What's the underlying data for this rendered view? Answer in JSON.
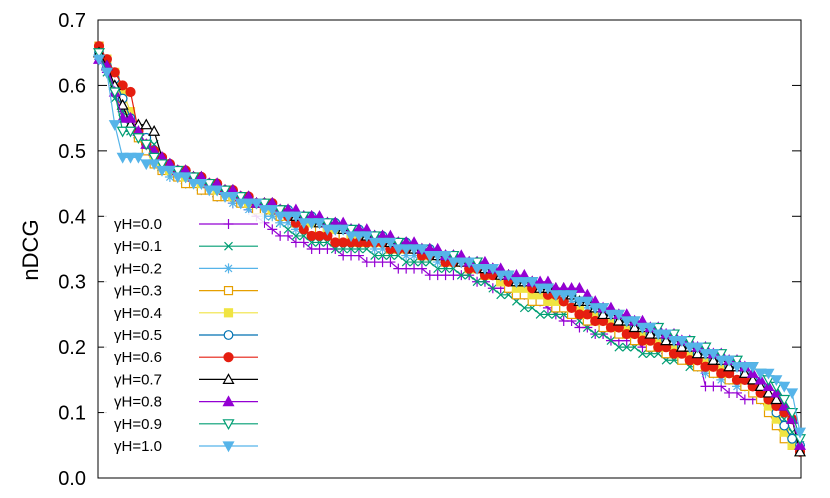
{
  "chart_data": {
    "type": "line",
    "ylabel": "nDCG",
    "xlabel": "",
    "ylim": [
      0.0,
      0.7
    ],
    "yticks": [
      "0.0",
      "0.1",
      "0.2",
      "0.3",
      "0.4",
      "0.5",
      "0.6",
      "0.7"
    ],
    "grid": false,
    "legend_position": "bottom-left",
    "x_range": [
      1,
      90
    ],
    "series": [
      {
        "name": "γH=0.0",
        "color": "#9400d3",
        "marker": "plus",
        "values": [
          0.64,
          0.62,
          0.6,
          0.56,
          0.53,
          0.52,
          0.51,
          0.5,
          0.49,
          0.48,
          0.47,
          0.47,
          0.46,
          0.45,
          0.44,
          0.43,
          0.43,
          0.42,
          0.42,
          0.41,
          0.4,
          0.39,
          0.38,
          0.37,
          0.37,
          0.36,
          0.36,
          0.35,
          0.35,
          0.35,
          0.35,
          0.34,
          0.34,
          0.34,
          0.33,
          0.33,
          0.33,
          0.33,
          0.32,
          0.32,
          0.32,
          0.32,
          0.31,
          0.31,
          0.31,
          0.31,
          0.31,
          0.31,
          0.3,
          0.3,
          0.29,
          0.29,
          0.29,
          0.28,
          0.28,
          0.28,
          0.27,
          0.26,
          0.25,
          0.24,
          0.24,
          0.23,
          0.23,
          0.22,
          0.22,
          0.21,
          0.21,
          0.21,
          0.21,
          0.2,
          0.2,
          0.2,
          0.19,
          0.19,
          0.19,
          0.19,
          0.19,
          0.14,
          0.14,
          0.14,
          0.13,
          0.13,
          0.12,
          0.12,
          0.12,
          0.12,
          0.1,
          0.08,
          0.06,
          0.04
        ]
      },
      {
        "name": "γH=0.1",
        "color": "#009e73",
        "marker": "cross",
        "values": [
          0.65,
          0.62,
          0.58,
          0.56,
          0.53,
          0.53,
          0.52,
          0.51,
          0.48,
          0.47,
          0.47,
          0.46,
          0.45,
          0.45,
          0.44,
          0.44,
          0.43,
          0.43,
          0.42,
          0.42,
          0.41,
          0.41,
          0.4,
          0.39,
          0.38,
          0.37,
          0.37,
          0.36,
          0.36,
          0.36,
          0.35,
          0.35,
          0.35,
          0.35,
          0.35,
          0.34,
          0.34,
          0.34,
          0.34,
          0.33,
          0.33,
          0.33,
          0.33,
          0.32,
          0.32,
          0.32,
          0.31,
          0.31,
          0.3,
          0.3,
          0.29,
          0.28,
          0.28,
          0.27,
          0.26,
          0.26,
          0.25,
          0.25,
          0.25,
          0.25,
          0.25,
          0.24,
          0.23,
          0.22,
          0.22,
          0.21,
          0.2,
          0.2,
          0.2,
          0.19,
          0.19,
          0.19,
          0.18,
          0.18,
          0.18,
          0.17,
          0.17,
          0.17,
          0.16,
          0.16,
          0.16,
          0.15,
          0.15,
          0.15,
          0.14,
          0.12,
          0.1,
          0.09,
          0.07,
          0.05
        ]
      },
      {
        "name": "γH=0.2",
        "color": "#56b4e9",
        "marker": "star",
        "values": [
          0.64,
          0.63,
          0.61,
          0.58,
          0.55,
          0.52,
          0.51,
          0.49,
          0.47,
          0.46,
          0.46,
          0.45,
          0.45,
          0.44,
          0.44,
          0.43,
          0.43,
          0.42,
          0.42,
          0.41,
          0.41,
          0.4,
          0.4,
          0.39,
          0.39,
          0.38,
          0.38,
          0.37,
          0.37,
          0.37,
          0.37,
          0.36,
          0.36,
          0.36,
          0.36,
          0.35,
          0.35,
          0.35,
          0.35,
          0.34,
          0.34,
          0.34,
          0.34,
          0.33,
          0.33,
          0.33,
          0.33,
          0.32,
          0.32,
          0.32,
          0.31,
          0.31,
          0.3,
          0.3,
          0.29,
          0.29,
          0.28,
          0.28,
          0.28,
          0.27,
          0.27,
          0.26,
          0.26,
          0.25,
          0.25,
          0.24,
          0.23,
          0.23,
          0.22,
          0.22,
          0.21,
          0.21,
          0.2,
          0.2,
          0.19,
          0.18,
          0.17,
          0.16,
          0.16,
          0.15,
          0.15,
          0.14,
          0.14,
          0.13,
          0.12,
          0.11,
          0.1,
          0.08,
          0.06,
          0.05
        ]
      },
      {
        "name": "γH=0.3",
        "color": "#e69f00",
        "marker": "square-open",
        "values": [
          0.66,
          0.64,
          0.61,
          0.58,
          0.55,
          0.52,
          0.5,
          0.48,
          0.47,
          0.47,
          0.46,
          0.45,
          0.45,
          0.44,
          0.44,
          0.43,
          0.43,
          0.43,
          0.42,
          0.42,
          0.41,
          0.41,
          0.41,
          0.4,
          0.4,
          0.39,
          0.39,
          0.38,
          0.38,
          0.38,
          0.37,
          0.37,
          0.37,
          0.36,
          0.36,
          0.36,
          0.36,
          0.35,
          0.35,
          0.35,
          0.35,
          0.34,
          0.34,
          0.34,
          0.33,
          0.33,
          0.33,
          0.32,
          0.32,
          0.31,
          0.31,
          0.3,
          0.29,
          0.28,
          0.28,
          0.27,
          0.27,
          0.27,
          0.26,
          0.26,
          0.25,
          0.25,
          0.24,
          0.24,
          0.23,
          0.23,
          0.22,
          0.22,
          0.21,
          0.21,
          0.2,
          0.2,
          0.19,
          0.19,
          0.18,
          0.18,
          0.17,
          0.17,
          0.16,
          0.16,
          0.15,
          0.15,
          0.14,
          0.13,
          0.12,
          0.1,
          0.08,
          0.06,
          0.05,
          0.04
        ]
      },
      {
        "name": "γH=0.4",
        "color": "#f0e442",
        "marker": "square-filled",
        "values": [
          0.65,
          0.64,
          0.62,
          0.59,
          0.56,
          0.53,
          0.51,
          0.49,
          0.48,
          0.47,
          0.47,
          0.46,
          0.46,
          0.45,
          0.45,
          0.44,
          0.44,
          0.43,
          0.43,
          0.42,
          0.42,
          0.42,
          0.41,
          0.41,
          0.4,
          0.4,
          0.39,
          0.39,
          0.39,
          0.38,
          0.38,
          0.38,
          0.37,
          0.37,
          0.37,
          0.36,
          0.36,
          0.36,
          0.36,
          0.35,
          0.35,
          0.35,
          0.34,
          0.34,
          0.34,
          0.33,
          0.33,
          0.32,
          0.32,
          0.32,
          0.31,
          0.3,
          0.3,
          0.29,
          0.29,
          0.28,
          0.28,
          0.27,
          0.27,
          0.27,
          0.26,
          0.26,
          0.25,
          0.25,
          0.24,
          0.24,
          0.23,
          0.23,
          0.22,
          0.22,
          0.21,
          0.21,
          0.2,
          0.2,
          0.19,
          0.19,
          0.18,
          0.18,
          0.17,
          0.17,
          0.16,
          0.16,
          0.15,
          0.14,
          0.13,
          0.11,
          0.09,
          0.07,
          0.05,
          0.04
        ]
      },
      {
        "name": "γH=0.5",
        "color": "#0072b2",
        "marker": "circle-open",
        "values": [
          0.65,
          0.63,
          0.61,
          0.58,
          0.55,
          0.53,
          0.52,
          0.5,
          0.49,
          0.48,
          0.47,
          0.47,
          0.46,
          0.46,
          0.45,
          0.45,
          0.44,
          0.44,
          0.43,
          0.43,
          0.42,
          0.42,
          0.42,
          0.41,
          0.41,
          0.4,
          0.4,
          0.4,
          0.39,
          0.39,
          0.39,
          0.38,
          0.38,
          0.38,
          0.37,
          0.37,
          0.37,
          0.36,
          0.36,
          0.36,
          0.35,
          0.35,
          0.35,
          0.34,
          0.34,
          0.34,
          0.33,
          0.33,
          0.33,
          0.32,
          0.32,
          0.31,
          0.31,
          0.3,
          0.3,
          0.3,
          0.29,
          0.29,
          0.28,
          0.28,
          0.28,
          0.27,
          0.27,
          0.26,
          0.25,
          0.25,
          0.24,
          0.24,
          0.23,
          0.23,
          0.22,
          0.22,
          0.21,
          0.21,
          0.2,
          0.2,
          0.19,
          0.19,
          0.18,
          0.18,
          0.17,
          0.16,
          0.16,
          0.15,
          0.14,
          0.12,
          0.1,
          0.08,
          0.06,
          0.05
        ]
      },
      {
        "name": "γH=0.6",
        "color": "#e51e10",
        "marker": "circle-filled",
        "values": [
          0.66,
          0.64,
          0.62,
          0.6,
          0.59,
          0.53,
          0.51,
          0.5,
          0.49,
          0.48,
          0.47,
          0.47,
          0.46,
          0.46,
          0.45,
          0.45,
          0.44,
          0.44,
          0.43,
          0.43,
          0.42,
          0.42,
          0.42,
          0.41,
          0.4,
          0.39,
          0.38,
          0.37,
          0.37,
          0.37,
          0.36,
          0.36,
          0.36,
          0.36,
          0.36,
          0.36,
          0.36,
          0.35,
          0.35,
          0.35,
          0.35,
          0.34,
          0.34,
          0.34,
          0.33,
          0.33,
          0.33,
          0.32,
          0.32,
          0.31,
          0.31,
          0.31,
          0.3,
          0.3,
          0.3,
          0.29,
          0.29,
          0.28,
          0.28,
          0.27,
          0.26,
          0.25,
          0.25,
          0.24,
          0.24,
          0.23,
          0.23,
          0.22,
          0.22,
          0.21,
          0.21,
          0.2,
          0.2,
          0.19,
          0.19,
          0.18,
          0.18,
          0.17,
          0.17,
          0.16,
          0.16,
          0.15,
          0.15,
          0.14,
          0.13,
          0.12,
          0.11,
          0.1,
          0.09,
          0.04
        ]
      },
      {
        "name": "γH=0.7",
        "color": "#000000",
        "marker": "triangle-open",
        "values": [
          0.65,
          0.63,
          0.6,
          0.57,
          0.54,
          0.54,
          0.54,
          0.53,
          0.49,
          0.48,
          0.47,
          0.47,
          0.46,
          0.46,
          0.45,
          0.45,
          0.44,
          0.44,
          0.43,
          0.43,
          0.42,
          0.42,
          0.42,
          0.41,
          0.41,
          0.4,
          0.4,
          0.4,
          0.39,
          0.39,
          0.39,
          0.38,
          0.38,
          0.38,
          0.37,
          0.37,
          0.37,
          0.36,
          0.36,
          0.36,
          0.35,
          0.35,
          0.35,
          0.34,
          0.34,
          0.34,
          0.33,
          0.33,
          0.33,
          0.32,
          0.32,
          0.31,
          0.31,
          0.3,
          0.3,
          0.3,
          0.29,
          0.29,
          0.29,
          0.29,
          0.28,
          0.27,
          0.27,
          0.26,
          0.25,
          0.25,
          0.24,
          0.24,
          0.23,
          0.23,
          0.22,
          0.22,
          0.21,
          0.21,
          0.2,
          0.2,
          0.19,
          0.19,
          0.18,
          0.18,
          0.17,
          0.17,
          0.16,
          0.15,
          0.14,
          0.13,
          0.12,
          0.11,
          0.09,
          0.04
        ]
      },
      {
        "name": "γH=0.8",
        "color": "#9400d3",
        "marker": "triangle-filled",
        "values": [
          0.64,
          0.63,
          0.59,
          0.55,
          0.55,
          0.53,
          0.51,
          0.5,
          0.49,
          0.48,
          0.47,
          0.47,
          0.46,
          0.46,
          0.45,
          0.45,
          0.44,
          0.44,
          0.43,
          0.43,
          0.42,
          0.42,
          0.42,
          0.41,
          0.41,
          0.41,
          0.4,
          0.4,
          0.4,
          0.39,
          0.39,
          0.39,
          0.38,
          0.38,
          0.38,
          0.37,
          0.37,
          0.37,
          0.36,
          0.36,
          0.36,
          0.35,
          0.35,
          0.35,
          0.34,
          0.34,
          0.34,
          0.33,
          0.33,
          0.33,
          0.32,
          0.32,
          0.31,
          0.31,
          0.31,
          0.3,
          0.3,
          0.3,
          0.29,
          0.29,
          0.29,
          0.29,
          0.28,
          0.27,
          0.26,
          0.26,
          0.25,
          0.25,
          0.24,
          0.24,
          0.23,
          0.23,
          0.22,
          0.22,
          0.21,
          0.21,
          0.2,
          0.2,
          0.19,
          0.19,
          0.18,
          0.18,
          0.17,
          0.16,
          0.15,
          0.14,
          0.13,
          0.11,
          0.09,
          0.05
        ]
      },
      {
        "name": "γH=0.9",
        "color": "#009e73",
        "marker": "triangle-down-open",
        "values": [
          0.65,
          0.62,
          0.59,
          0.53,
          0.53,
          0.52,
          0.51,
          0.49,
          0.48,
          0.47,
          0.47,
          0.46,
          0.46,
          0.45,
          0.45,
          0.44,
          0.44,
          0.43,
          0.43,
          0.42,
          0.42,
          0.42,
          0.41,
          0.41,
          0.4,
          0.4,
          0.4,
          0.39,
          0.39,
          0.39,
          0.38,
          0.38,
          0.38,
          0.37,
          0.37,
          0.37,
          0.36,
          0.36,
          0.36,
          0.35,
          0.35,
          0.35,
          0.34,
          0.34,
          0.34,
          0.34,
          0.33,
          0.33,
          0.33,
          0.32,
          0.32,
          0.31,
          0.31,
          0.3,
          0.3,
          0.3,
          0.29,
          0.29,
          0.28,
          0.28,
          0.28,
          0.27,
          0.27,
          0.26,
          0.26,
          0.25,
          0.25,
          0.24,
          0.24,
          0.23,
          0.23,
          0.23,
          0.22,
          0.22,
          0.21,
          0.21,
          0.2,
          0.2,
          0.19,
          0.19,
          0.18,
          0.18,
          0.17,
          0.17,
          0.16,
          0.15,
          0.14,
          0.12,
          0.1,
          0.06
        ]
      },
      {
        "name": "γH=1.0",
        "color": "#56b4e9",
        "marker": "triangle-down-filled",
        "values": [
          0.64,
          0.62,
          0.54,
          0.49,
          0.49,
          0.49,
          0.48,
          0.48,
          0.47,
          0.47,
          0.46,
          0.46,
          0.45,
          0.45,
          0.44,
          0.44,
          0.43,
          0.43,
          0.42,
          0.42,
          0.42,
          0.41,
          0.41,
          0.4,
          0.4,
          0.4,
          0.39,
          0.39,
          0.39,
          0.38,
          0.38,
          0.38,
          0.37,
          0.37,
          0.37,
          0.36,
          0.36,
          0.36,
          0.35,
          0.35,
          0.35,
          0.35,
          0.34,
          0.34,
          0.34,
          0.33,
          0.33,
          0.33,
          0.32,
          0.32,
          0.32,
          0.31,
          0.31,
          0.3,
          0.3,
          0.3,
          0.29,
          0.29,
          0.28,
          0.28,
          0.28,
          0.27,
          0.27,
          0.26,
          0.26,
          0.25,
          0.25,
          0.24,
          0.24,
          0.23,
          0.23,
          0.22,
          0.22,
          0.21,
          0.21,
          0.2,
          0.2,
          0.19,
          0.19,
          0.18,
          0.18,
          0.17,
          0.17,
          0.17,
          0.16,
          0.16,
          0.15,
          0.14,
          0.13,
          0.07
        ]
      }
    ]
  }
}
